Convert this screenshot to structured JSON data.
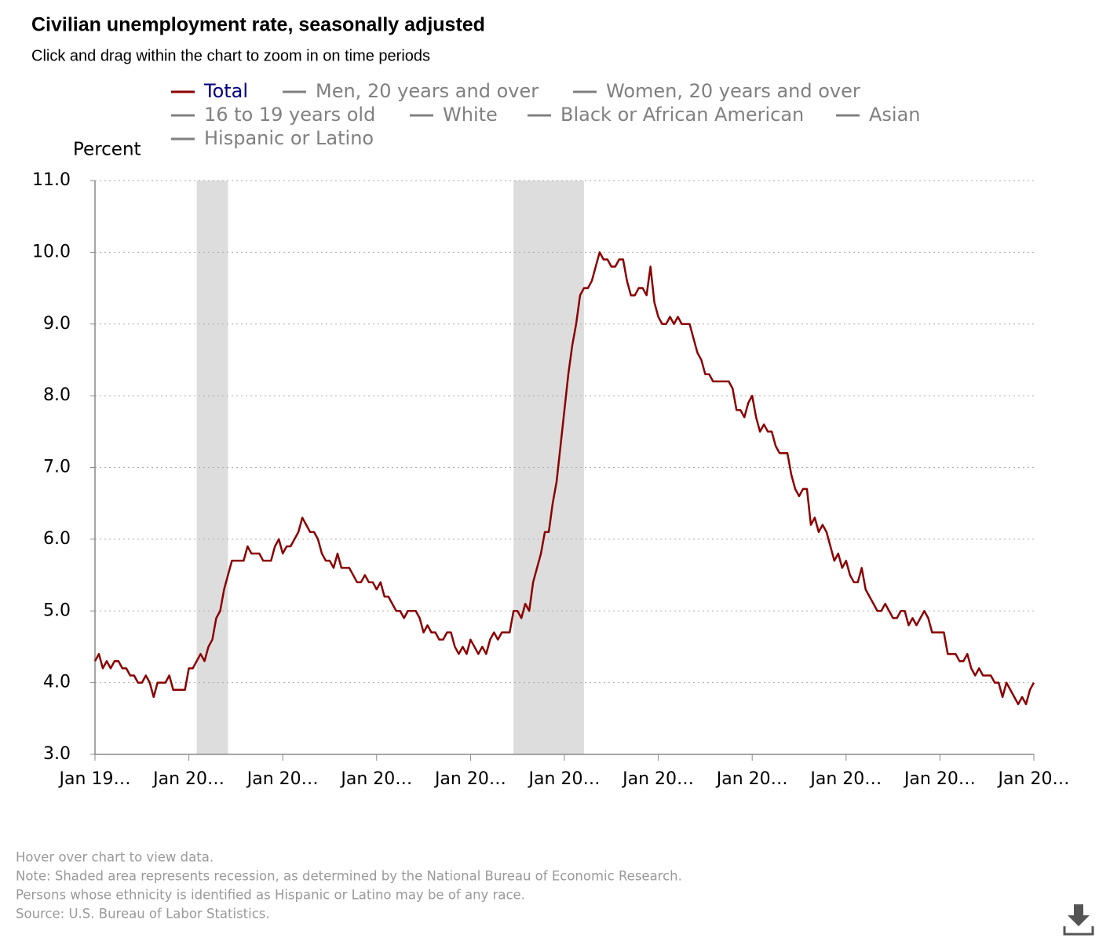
{
  "chart_data": {
    "type": "line",
    "title": "Civilian unemployment rate, seasonally adjusted",
    "subtitle": "Click and drag within the chart to zoom in on time periods",
    "ylabel": "Percent",
    "categories": [
      "Jan 19…",
      null,
      null,
      null,
      null,
      null,
      null,
      null,
      null,
      null,
      null,
      null,
      null,
      null,
      null,
      null,
      null,
      null,
      null,
      null,
      null,
      null,
      null,
      null,
      "Jan 20…",
      null,
      null,
      null,
      null,
      null,
      null,
      null,
      null,
      null,
      null,
      null,
      null,
      null,
      null,
      null,
      null,
      null,
      null,
      null,
      null,
      null,
      null,
      null,
      "Jan 20…",
      null,
      null,
      null,
      null,
      null,
      null,
      null,
      null,
      null,
      null,
      null,
      null,
      null,
      null,
      null,
      null,
      null,
      null,
      null,
      null,
      null,
      null,
      null,
      "Jan 20…",
      null,
      null,
      null,
      null,
      null,
      null,
      null,
      null,
      null,
      null,
      null,
      null,
      null,
      null,
      null,
      null,
      null,
      null,
      null,
      null,
      null,
      null,
      null,
      "Jan 20…",
      null,
      null,
      null,
      null,
      null,
      null,
      null,
      null,
      null,
      null,
      null,
      null,
      null,
      null,
      null,
      null,
      null,
      null,
      null,
      null,
      null,
      null,
      null,
      "Jan 20…",
      null,
      null,
      null,
      null,
      null,
      null,
      null,
      null,
      null,
      null,
      null,
      null,
      null,
      null,
      null,
      null,
      null,
      null,
      null,
      null,
      null,
      null,
      null,
      "Jan 20…",
      null,
      null,
      null,
      null,
      null,
      null,
      null,
      null,
      null,
      null,
      null,
      null,
      null,
      null,
      null,
      null,
      null,
      null,
      null,
      null,
      null,
      null,
      null,
      "Jan 20…",
      null,
      null,
      null,
      null,
      null,
      null,
      null,
      null,
      null,
      null,
      null,
      null,
      null,
      null,
      null,
      null,
      null,
      null,
      null,
      null,
      null,
      null,
      null,
      "Jan 20…",
      null,
      null,
      null,
      null,
      null,
      null,
      null,
      null,
      null,
      null,
      null,
      null,
      null,
      null,
      null,
      null,
      null,
      null,
      null,
      null,
      null,
      null,
      null,
      "Jan 20…",
      null,
      null,
      null,
      null,
      null,
      null,
      null,
      null,
      null,
      null,
      null,
      null,
      null,
      null,
      null,
      null,
      null,
      null,
      null,
      null,
      null,
      null,
      null,
      "Jan 20…"
    ],
    "series": [
      {
        "name": "Total",
        "color": "#8b0000",
        "label_color": "#000080",
        "values": [
          4.3,
          4.4,
          4.2,
          4.3,
          4.2,
          4.3,
          4.3,
          4.2,
          4.2,
          4.1,
          4.1,
          4.0,
          4.0,
          4.1,
          4.0,
          3.8,
          4.0,
          4.0,
          4.0,
          4.1,
          3.9,
          3.9,
          3.9,
          3.9,
          4.2,
          4.2,
          4.3,
          4.4,
          4.3,
          4.5,
          4.6,
          4.9,
          5.0,
          5.3,
          5.5,
          5.7,
          5.7,
          5.7,
          5.7,
          5.9,
          5.8,
          5.8,
          5.8,
          5.7,
          5.7,
          5.7,
          5.9,
          6.0,
          5.8,
          5.9,
          5.9,
          6.0,
          6.1,
          6.3,
          6.2,
          6.1,
          6.1,
          6.0,
          5.8,
          5.7,
          5.7,
          5.6,
          5.8,
          5.6,
          5.6,
          5.6,
          5.5,
          5.4,
          5.4,
          5.5,
          5.4,
          5.4,
          5.3,
          5.4,
          5.2,
          5.2,
          5.1,
          5.0,
          5.0,
          4.9,
          5.0,
          5.0,
          5.0,
          4.9,
          4.7,
          4.8,
          4.7,
          4.7,
          4.6,
          4.6,
          4.7,
          4.7,
          4.5,
          4.4,
          4.5,
          4.4,
          4.6,
          4.5,
          4.4,
          4.5,
          4.4,
          4.6,
          4.7,
          4.6,
          4.7,
          4.7,
          4.7,
          5.0,
          5.0,
          4.9,
          5.1,
          5.0,
          5.4,
          5.6,
          5.8,
          6.1,
          6.1,
          6.5,
          6.8,
          7.3,
          7.8,
          8.3,
          8.7,
          9.0,
          9.4,
          9.5,
          9.5,
          9.6,
          9.8,
          10.0,
          9.9,
          9.9,
          9.8,
          9.8,
          9.9,
          9.9,
          9.6,
          9.4,
          9.4,
          9.5,
          9.5,
          9.4,
          9.8,
          9.3,
          9.1,
          9.0,
          9.0,
          9.1,
          9.0,
          9.1,
          9.0,
          9.0,
          9.0,
          8.8,
          8.6,
          8.5,
          8.3,
          8.3,
          8.2,
          8.2,
          8.2,
          8.2,
          8.2,
          8.1,
          7.8,
          7.8,
          7.7,
          7.9,
          8.0,
          7.7,
          7.5,
          7.6,
          7.5,
          7.5,
          7.3,
          7.2,
          7.2,
          7.2,
          6.9,
          6.7,
          6.6,
          6.7,
          6.7,
          6.2,
          6.3,
          6.1,
          6.2,
          6.1,
          5.9,
          5.7,
          5.8,
          5.6,
          5.7,
          5.5,
          5.4,
          5.4,
          5.6,
          5.3,
          5.2,
          5.1,
          5.0,
          5.0,
          5.1,
          5.0,
          4.9,
          4.9,
          5.0,
          5.0,
          4.8,
          4.9,
          4.8,
          4.9,
          5.0,
          4.9,
          4.7,
          4.7,
          4.7,
          4.7,
          4.4,
          4.4,
          4.4,
          4.3,
          4.3,
          4.4,
          4.2,
          4.1,
          4.2,
          4.1,
          4.1,
          4.1,
          4.0,
          4.0,
          3.8,
          4.0,
          3.9,
          3.8,
          3.7,
          3.8,
          3.7,
          3.9,
          4.0
        ]
      },
      {
        "name": "Men, 20 years and over",
        "color": "#808080",
        "visible": false
      },
      {
        "name": "Women, 20 years and over",
        "color": "#808080",
        "visible": false
      },
      {
        "name": "16 to 19 years old",
        "color": "#808080",
        "visible": false
      },
      {
        "name": "White",
        "color": "#808080",
        "visible": false
      },
      {
        "name": "Black or African American",
        "color": "#808080",
        "visible": false
      },
      {
        "name": "Asian",
        "color": "#808080",
        "visible": false
      },
      {
        "name": "Hispanic or Latino",
        "color": "#808080",
        "visible": false
      }
    ],
    "shaded_ranges": [
      {
        "start": 26,
        "end": 34
      },
      {
        "start": 107,
        "end": 125
      }
    ],
    "shade_color": "#dddddd",
    "ylim": [
      3,
      11
    ],
    "yticks": [
      {
        "value": 3,
        "label": "3.0"
      },
      {
        "value": 4,
        "label": "4.0"
      },
      {
        "value": 5,
        "label": "5.0"
      },
      {
        "value": 6,
        "label": "6.0"
      },
      {
        "value": 7,
        "label": "7.0"
      },
      {
        "value": 8,
        "label": "8.0"
      },
      {
        "value": 9,
        "label": "9.0"
      },
      {
        "value": 10,
        "label": "10.0"
      },
      {
        "value": 11,
        "label": "11.0"
      }
    ],
    "grid": true,
    "notes": [
      "Hover over chart to view data.",
      "Note: Shaded area represents recession, as determined by the National Bureau of Economic Research.",
      "Persons whose ethnicity is identified as Hispanic or Latino may be of any race.",
      "Source: U.S. Bureau of Labor Statistics."
    ]
  }
}
